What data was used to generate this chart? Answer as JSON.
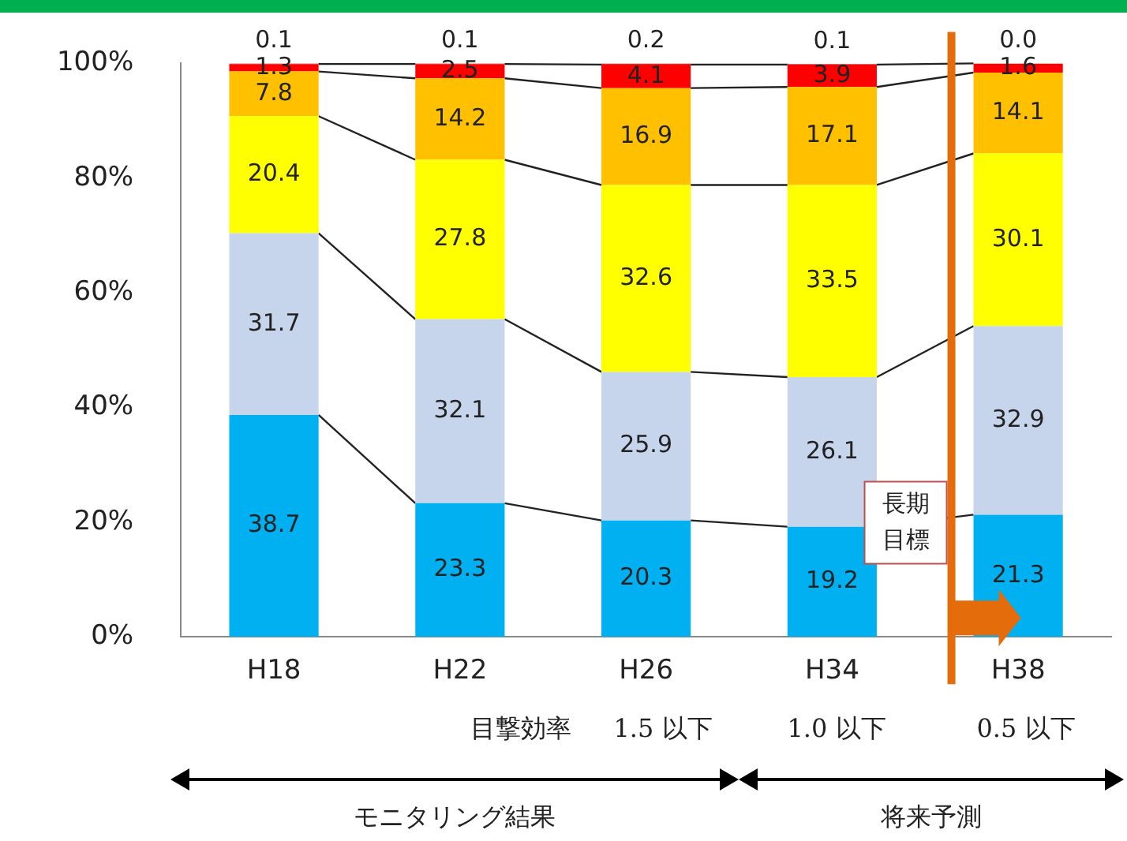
{
  "chart_data": {
    "type": "bar",
    "stacked": true,
    "categories": [
      "H18",
      "H22",
      "H26",
      "H34",
      "H38"
    ],
    "series": [
      {
        "color": "#00b0f0",
        "values": [
          38.7,
          23.3,
          20.3,
          19.2,
          21.3
        ]
      },
      {
        "color": "#c6d5ec",
        "values": [
          31.7,
          32.1,
          25.9,
          26.1,
          32.9
        ]
      },
      {
        "color": "#ffff00",
        "values": [
          20.4,
          27.8,
          32.6,
          33.5,
          30.1
        ]
      },
      {
        "color": "#ffc000",
        "values": [
          7.8,
          14.2,
          16.9,
          17.1,
          14.1
        ]
      },
      {
        "color": "#ff0000",
        "values": [
          1.3,
          2.5,
          4.1,
          3.9,
          1.6
        ]
      },
      {
        "color": "#c00000",
        "values": [
          0.1,
          0.1,
          0.2,
          0.1,
          0.0
        ],
        "value_labels": [
          "0.1",
          "0.1",
          "0.2",
          "0.1",
          "0.0"
        ]
      }
    ],
    "ylim": [
      0,
      100
    ],
    "yticks": [
      {
        "value": 0,
        "label": "0%"
      },
      {
        "value": 20,
        "label": "20%"
      },
      {
        "value": 40,
        "label": "40%"
      },
      {
        "value": 60,
        "label": "60%"
      },
      {
        "value": 80,
        "label": "80%"
      },
      {
        "value": 100,
        "label": "100%"
      }
    ],
    "grid": false,
    "legend": false,
    "data_labels": true,
    "ref_lines": [
      {
        "axis": "x",
        "value": "H38",
        "label": "長期目標",
        "color": "#e46c0a"
      }
    ],
    "annotations": [
      "目撃効率",
      "1.5 以下",
      "1.0 以下",
      "0.5 以下",
      "モニタリング結果",
      "将来予測"
    ]
  }
}
